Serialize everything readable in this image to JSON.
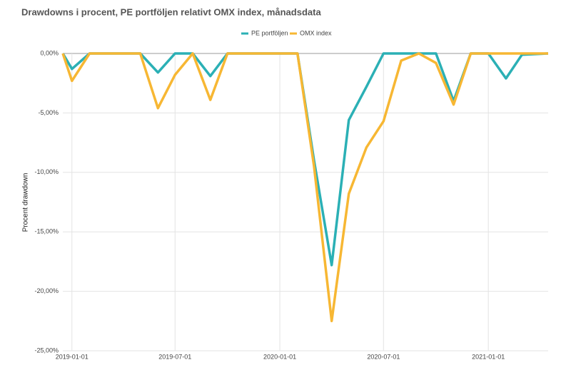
{
  "chart_data": {
    "type": "line",
    "title": "Drawdowns i procent, PE portföljen relativt OMX index, månadsdata",
    "y_label": "Procent drawdown",
    "x": [
      "2018-12-16",
      "2019-01-01",
      "2019-02-01",
      "2019-03-01",
      "2019-04-01",
      "2019-05-01",
      "2019-06-01",
      "2019-07-01",
      "2019-08-01",
      "2019-09-01",
      "2019-10-01",
      "2019-11-01",
      "2019-12-01",
      "2020-01-01",
      "2020-02-01",
      "2020-03-01",
      "2020-04-01",
      "2020-05-01",
      "2020-06-01",
      "2020-07-01",
      "2020-08-01",
      "2020-09-01",
      "2020-10-01",
      "2020-11-01",
      "2020-12-01",
      "2021-01-01",
      "2021-02-01",
      "2021-03-01",
      "2021-04-16"
    ],
    "series": [
      {
        "name": "PE portföljen",
        "color": "#2bb0b5",
        "values": [
          0,
          -1.3,
          0,
          0,
          0,
          0,
          -1.6,
          0,
          0,
          -1.9,
          0,
          0,
          0,
          0,
          0,
          -9,
          -17.8,
          -5.6,
          -2.8,
          0,
          0,
          0,
          0,
          -4,
          0,
          0,
          -2.1,
          -0.1,
          0
        ]
      },
      {
        "name": "OMX index",
        "color": "#f7b733",
        "values": [
          0,
          -2.3,
          0,
          0,
          0,
          0,
          -4.6,
          -1.8,
          0,
          -3.9,
          0,
          0,
          0,
          0,
          0,
          -9.5,
          -22.5,
          -11.8,
          -7.9,
          -5.7,
          -0.6,
          0,
          -0.8,
          -4.3,
          0,
          0,
          0,
          0,
          0
        ]
      }
    ],
    "xlim": [
      "2018-12-16",
      "2021-04-16"
    ],
    "xticks": [
      "2019-01-01",
      "2019-07-01",
      "2020-01-01",
      "2020-07-01",
      "2021-01-01"
    ],
    "ylim": [
      -25,
      0
    ],
    "yticks": [
      {
        "value": 0,
        "label": "0,00%"
      },
      {
        "value": -5,
        "label": "-5,00%"
      },
      {
        "value": -10,
        "label": "-10,00%"
      },
      {
        "value": -15,
        "label": "-15,00%"
      },
      {
        "value": -20,
        "label": "-20,00%"
      },
      {
        "value": -25,
        "label": "-25,00%"
      }
    ],
    "grid": true,
    "legend": "top"
  }
}
